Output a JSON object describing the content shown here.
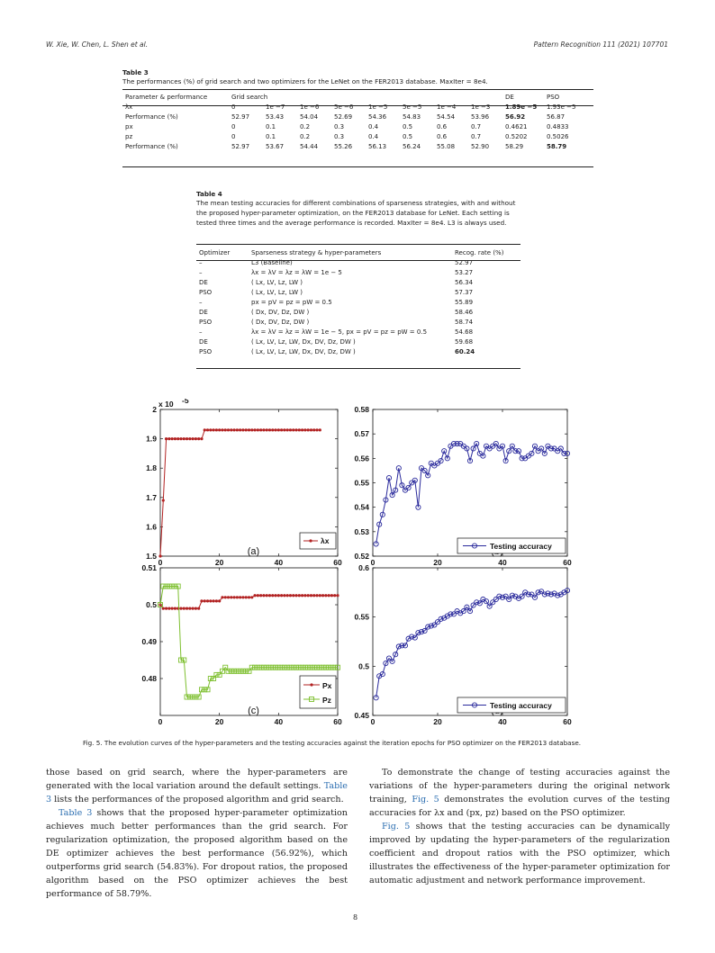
{
  "header": {
    "authors": "W. Xie, W. Chen, L. Shen et al.",
    "journal": "Pattern Recognition 111 (2021) 107701"
  },
  "table3": {
    "title": "Table 3",
    "caption": "The performances (%) of grid search and two optimizers for the LeNet on the FER2013 database. MaxIter = 8e4.",
    "col_param": "Parameter & performance",
    "col_grid": "Grid search",
    "col_de": "DE",
    "col_pso": "PSO",
    "rows": [
      {
        "label": "λx",
        "cells": [
          "0",
          "1e −7",
          "1e −6",
          "5e −6",
          "1e −5",
          "5e −5",
          "1e −4",
          "1e −3",
          "1.89e −5",
          "1.93e −5"
        ]
      },
      {
        "label": "Performance (%)",
        "cells": [
          "52.97",
          "53.43",
          "54.04",
          "52.69",
          "54.36",
          "54.83",
          "54.54",
          "53.96",
          "56.92",
          "56.87"
        ]
      },
      {
        "label": "px",
        "cells": [
          "0",
          "0.1",
          "0.2",
          "0.3",
          "0.4",
          "0.5",
          "0.6",
          "0.7",
          "0.4621",
          "0.4833"
        ]
      },
      {
        "label": "pz",
        "cells": [
          "0",
          "0.1",
          "0.2",
          "0.3",
          "0.4",
          "0.5",
          "0.6",
          "0.7",
          "0.5202",
          "0.5026"
        ]
      },
      {
        "label": "Performance (%)",
        "cells": [
          "52.97",
          "53.67",
          "54.44",
          "55.26",
          "56.13",
          "56.24",
          "55.08",
          "52.90",
          "58.29",
          "58.79"
        ]
      }
    ]
  },
  "table4": {
    "title": "Table 4",
    "caption": "The mean testing accuracies for different combinations of sparseness strategies, with and without the proposed hyper-parameter optimization, on the FER2013 database for LeNet. Each setting is tested three times and the average performance is recorded. MaxIter = 8e4. L3 is always used.",
    "col_opt": "Optimizer",
    "col_strat": "Sparseness strategy & hyper-parameters",
    "col_rate": "Recog. rate (%)",
    "rows": [
      {
        "opt": "–",
        "strat": "L3 (Baseline)",
        "rate": "52.97"
      },
      {
        "opt": "–",
        "strat": "λx = λV = λz = λW = 1e − 5",
        "rate": "53.27"
      },
      {
        "opt": "DE",
        "strat": "( Lx, LV, Lz, LW )",
        "rate": "56.34"
      },
      {
        "opt": "PSO",
        "strat": "( Lx, LV, Lz, LW )",
        "rate": "57.37"
      },
      {
        "opt": "–",
        "strat": "px = pV = pz = pW = 0.5",
        "rate": "55.89"
      },
      {
        "opt": "DE",
        "strat": "( Dx, DV, Dz, DW )",
        "rate": "58.46"
      },
      {
        "opt": "PSO",
        "strat": "( Dx, DV, Dz, DW )",
        "rate": "58.74"
      },
      {
        "opt": "–",
        "strat": "λx = λV = λz = λW = 1e − 5, px = pV = pz = pW = 0.5",
        "rate": "54.68"
      },
      {
        "opt": "DE",
        "strat": "( Lx, LV, Lz, LW, Dx, DV, Dz, DW )",
        "rate": "59.68"
      },
      {
        "opt": "PSO",
        "strat": "( Lx, LV, Lz, LW, Dx, DV, Dz, DW )",
        "rate": "60.24"
      }
    ]
  },
  "figure": {
    "caption": "Fig. 5.  The evolution curves of the hyper-parameters and the testing accuracies against the iteration epochs for PSO optimizer on the FER2013 database.",
    "panel_a_label": "(a)",
    "panel_b_label": "(b)",
    "panel_c_label": "(c)",
    "panel_d_label": "(d)",
    "exp_label": "x 10",
    "exp_power": "-5"
  },
  "chart_data": [
    {
      "type": "line",
      "panel": "(a)",
      "xlim": [
        0,
        60
      ],
      "ylim": [
        1.5,
        2
      ],
      "xticks": [
        "0",
        "20",
        "40",
        "60"
      ],
      "yticks": [
        "1.5",
        "1.6",
        "1.7",
        "1.8",
        "1.9",
        "2"
      ],
      "y_multiplier": "x 10^-5",
      "legend": "λx",
      "legend_position": "bottom-right",
      "series": [
        {
          "name": "λx",
          "color": "#b22222",
          "x": [
            0,
            1,
            2,
            3,
            4,
            5,
            6,
            7,
            8,
            9,
            10,
            11,
            12,
            13,
            14,
            15,
            16,
            17,
            18,
            19,
            20,
            21,
            22,
            23,
            24,
            25,
            26,
            27,
            28,
            29,
            30,
            31,
            32,
            33,
            34,
            35,
            36,
            37,
            38,
            39,
            40,
            41,
            42,
            43,
            44,
            45,
            46,
            47,
            48,
            49,
            50,
            51,
            52,
            53,
            54
          ],
          "y": [
            1.5,
            1.69,
            1.9,
            1.9,
            1.9,
            1.9,
            1.9,
            1.9,
            1.9,
            1.9,
            1.9,
            1.9,
            1.9,
            1.9,
            1.9,
            1.93,
            1.93,
            1.93,
            1.93,
            1.93,
            1.93,
            1.93,
            1.93,
            1.93,
            1.93,
            1.93,
            1.93,
            1.93,
            1.93,
            1.93,
            1.93,
            1.93,
            1.93,
            1.93,
            1.93,
            1.93,
            1.93,
            1.93,
            1.93,
            1.93,
            1.93,
            1.93,
            1.93,
            1.93,
            1.93,
            1.93,
            1.93,
            1.93,
            1.93,
            1.93,
            1.93,
            1.93,
            1.93,
            1.93,
            1.93
          ]
        }
      ]
    },
    {
      "type": "line",
      "panel": "(b)",
      "xlim": [
        0,
        60
      ],
      "ylim": [
        0.52,
        0.58
      ],
      "xticks": [
        "0",
        "20",
        "40",
        "60"
      ],
      "yticks": [
        "0.52",
        "0.53",
        "0.54",
        "0.55",
        "0.56",
        "0.57",
        "0.58"
      ],
      "legend": "Testing accuracy",
      "legend_position": "bottom-right",
      "series": [
        {
          "name": "Testing accuracy",
          "color": "#2a2a9c",
          "x": [
            1,
            2,
            3,
            4,
            5,
            6,
            7,
            8,
            9,
            10,
            11,
            12,
            13,
            14,
            15,
            16,
            17,
            18,
            19,
            20,
            21,
            22,
            23,
            24,
            25,
            26,
            27,
            28,
            29,
            30,
            31,
            32,
            33,
            34,
            35,
            36,
            37,
            38,
            39,
            40,
            41,
            42,
            43,
            44,
            45,
            46,
            47,
            48,
            49,
            50,
            51,
            52,
            53,
            54,
            55,
            56,
            57,
            58,
            59,
            60
          ],
          "y": [
            0.525,
            0.533,
            0.537,
            0.543,
            0.552,
            0.545,
            0.547,
            0.556,
            0.549,
            0.547,
            0.548,
            0.55,
            0.551,
            0.54,
            0.556,
            0.555,
            0.553,
            0.558,
            0.557,
            0.558,
            0.559,
            0.563,
            0.56,
            0.565,
            0.566,
            0.566,
            0.566,
            0.565,
            0.564,
            0.559,
            0.564,
            0.566,
            0.562,
            0.561,
            0.565,
            0.564,
            0.565,
            0.566,
            0.564,
            0.565,
            0.559,
            0.563,
            0.565,
            0.563,
            0.563,
            0.56,
            0.56,
            0.561,
            0.562,
            0.565,
            0.563,
            0.564,
            0.562,
            0.565,
            0.564,
            0.564,
            0.563,
            0.564,
            0.562,
            0.562
          ]
        }
      ]
    },
    {
      "type": "line",
      "panel": "(c)",
      "xlim": [
        0,
        60
      ],
      "ylim": [
        0.47,
        0.51
      ],
      "xticks": [
        "0",
        "20",
        "40",
        "60"
      ],
      "yticks": [
        "0.48",
        "0.49",
        "0.5",
        "0.51"
      ],
      "legend": [
        "Px",
        "Pz"
      ],
      "legend_position": "bottom-right",
      "series": [
        {
          "name": "Px",
          "color": "#b22222",
          "x": [
            0,
            1,
            2,
            3,
            4,
            5,
            6,
            7,
            8,
            9,
            10,
            11,
            12,
            13,
            14,
            15,
            16,
            17,
            18,
            19,
            20,
            21,
            22,
            23,
            24,
            25,
            26,
            27,
            28,
            29,
            30,
            31,
            32,
            33,
            34,
            35,
            36,
            37,
            38,
            39,
            40,
            41,
            42,
            43,
            44,
            45,
            46,
            47,
            48,
            49,
            50,
            51,
            52,
            53,
            54,
            55,
            56,
            57,
            58,
            59,
            60
          ],
          "y": [
            0.5,
            0.499,
            0.499,
            0.499,
            0.499,
            0.499,
            0.499,
            0.499,
            0.499,
            0.499,
            0.499,
            0.499,
            0.499,
            0.499,
            0.501,
            0.501,
            0.501,
            0.501,
            0.501,
            0.501,
            0.501,
            0.502,
            0.502,
            0.502,
            0.502,
            0.502,
            0.502,
            0.502,
            0.502,
            0.502,
            0.502,
            0.502,
            0.5025,
            0.5025,
            0.5025,
            0.5025,
            0.5025,
            0.5025,
            0.5025,
            0.5025,
            0.5025,
            0.5025,
            0.5025,
            0.5025,
            0.5025,
            0.5025,
            0.5025,
            0.5025,
            0.5025,
            0.5025,
            0.5025,
            0.5025,
            0.5025,
            0.5025,
            0.5025,
            0.5025,
            0.5025,
            0.5025,
            0.5025,
            0.5025,
            0.5025
          ]
        },
        {
          "name": "Pz",
          "color": "#7dbf2e",
          "x": [
            0,
            1,
            2,
            3,
            4,
            5,
            6,
            7,
            8,
            9,
            10,
            11,
            12,
            13,
            14,
            15,
            16,
            17,
            18,
            19,
            20,
            21,
            22,
            23,
            24,
            25,
            26,
            27,
            28,
            29,
            30,
            31,
            32,
            33,
            34,
            35,
            36,
            37,
            38,
            39,
            40,
            41,
            42,
            43,
            44,
            45,
            46,
            47,
            48,
            49,
            50,
            51,
            52,
            53,
            54,
            55,
            56,
            57,
            58,
            59,
            60
          ],
          "y": [
            0.5,
            0.505,
            0.505,
            0.505,
            0.505,
            0.505,
            0.505,
            0.485,
            0.485,
            0.475,
            0.475,
            0.475,
            0.475,
            0.475,
            0.477,
            0.477,
            0.477,
            0.48,
            0.48,
            0.481,
            0.481,
            0.482,
            0.483,
            0.482,
            0.482,
            0.482,
            0.482,
            0.482,
            0.482,
            0.482,
            0.482,
            0.483,
            0.483,
            0.483,
            0.483,
            0.483,
            0.483,
            0.483,
            0.483,
            0.483,
            0.483,
            0.483,
            0.483,
            0.483,
            0.483,
            0.483,
            0.483,
            0.483,
            0.483,
            0.483,
            0.483,
            0.483,
            0.483,
            0.483,
            0.483,
            0.483,
            0.483,
            0.483,
            0.483,
            0.483,
            0.483
          ]
        }
      ]
    },
    {
      "type": "line",
      "panel": "(d)",
      "xlim": [
        0,
        60
      ],
      "ylim": [
        0.45,
        0.6
      ],
      "xticks": [
        "0",
        "20",
        "40",
        "60"
      ],
      "yticks": [
        "0.45",
        "0.5",
        "0.55",
        "0.6"
      ],
      "legend": "Testing accuracy",
      "legend_position": "bottom-right",
      "series": [
        {
          "name": "Testing accuracy",
          "color": "#2a2a9c",
          "x": [
            1,
            2,
            3,
            4,
            5,
            6,
            7,
            8,
            9,
            10,
            11,
            12,
            13,
            14,
            15,
            16,
            17,
            18,
            19,
            20,
            21,
            22,
            23,
            24,
            25,
            26,
            27,
            28,
            29,
            30,
            31,
            32,
            33,
            34,
            35,
            36,
            37,
            38,
            39,
            40,
            41,
            42,
            43,
            44,
            45,
            46,
            47,
            48,
            49,
            50,
            51,
            52,
            53,
            54,
            55,
            56,
            57,
            58,
            59,
            60
          ],
          "y": [
            0.468,
            0.49,
            0.492,
            0.503,
            0.508,
            0.505,
            0.512,
            0.52,
            0.521,
            0.521,
            0.528,
            0.53,
            0.529,
            0.534,
            0.535,
            0.536,
            0.54,
            0.541,
            0.542,
            0.545,
            0.548,
            0.549,
            0.551,
            0.553,
            0.553,
            0.556,
            0.554,
            0.556,
            0.56,
            0.556,
            0.562,
            0.565,
            0.564,
            0.568,
            0.566,
            0.561,
            0.565,
            0.568,
            0.571,
            0.57,
            0.571,
            0.568,
            0.572,
            0.571,
            0.569,
            0.571,
            0.575,
            0.573,
            0.573,
            0.57,
            0.575,
            0.576,
            0.573,
            0.574,
            0.573,
            0.574,
            0.572,
            0.573,
            0.575,
            0.577
          ]
        }
      ]
    }
  ],
  "text": {
    "left_p1": "those based on grid search, where the hyper-parameters are generated with the local variation around the default settings.",
    "left_p1_link": "Table 3",
    "left_p1_tail": "lists the performances of the proposed algorithm and grid search.",
    "left_p2_link": "Table 3",
    "left_p2": "shows that the proposed hyper-parameter optimization achieves much better performances than the grid search. For regularization optimization, the proposed algorithm based on the DE optimizer achieves the best performance (56.92%), which outperforms grid search (54.83%). For dropout ratios, the proposed algorithm based on the PSO optimizer achieves the best performance of 58.79%.",
    "right_p1_a": "To demonstrate the change of testing accuracies against the variations of the hyper-parameters during the original network training,",
    "right_p1_link": "Fig. 5",
    "right_p1_b": "demonstrates the evolution curves of the testing accuracies for λx and (px, pz) based on the PSO optimizer.",
    "right_p2_link": "Fig. 5",
    "right_p2": "shows that the testing accuracies can be dynamically improved by updating the hyper-parameters of the regularization coefficient and dropout ratios with the PSO optimizer, which illustrates the effectiveness of the hyper-parameter optimization for automatic adjustment and network performance improvement.",
    "page_number": "8"
  }
}
